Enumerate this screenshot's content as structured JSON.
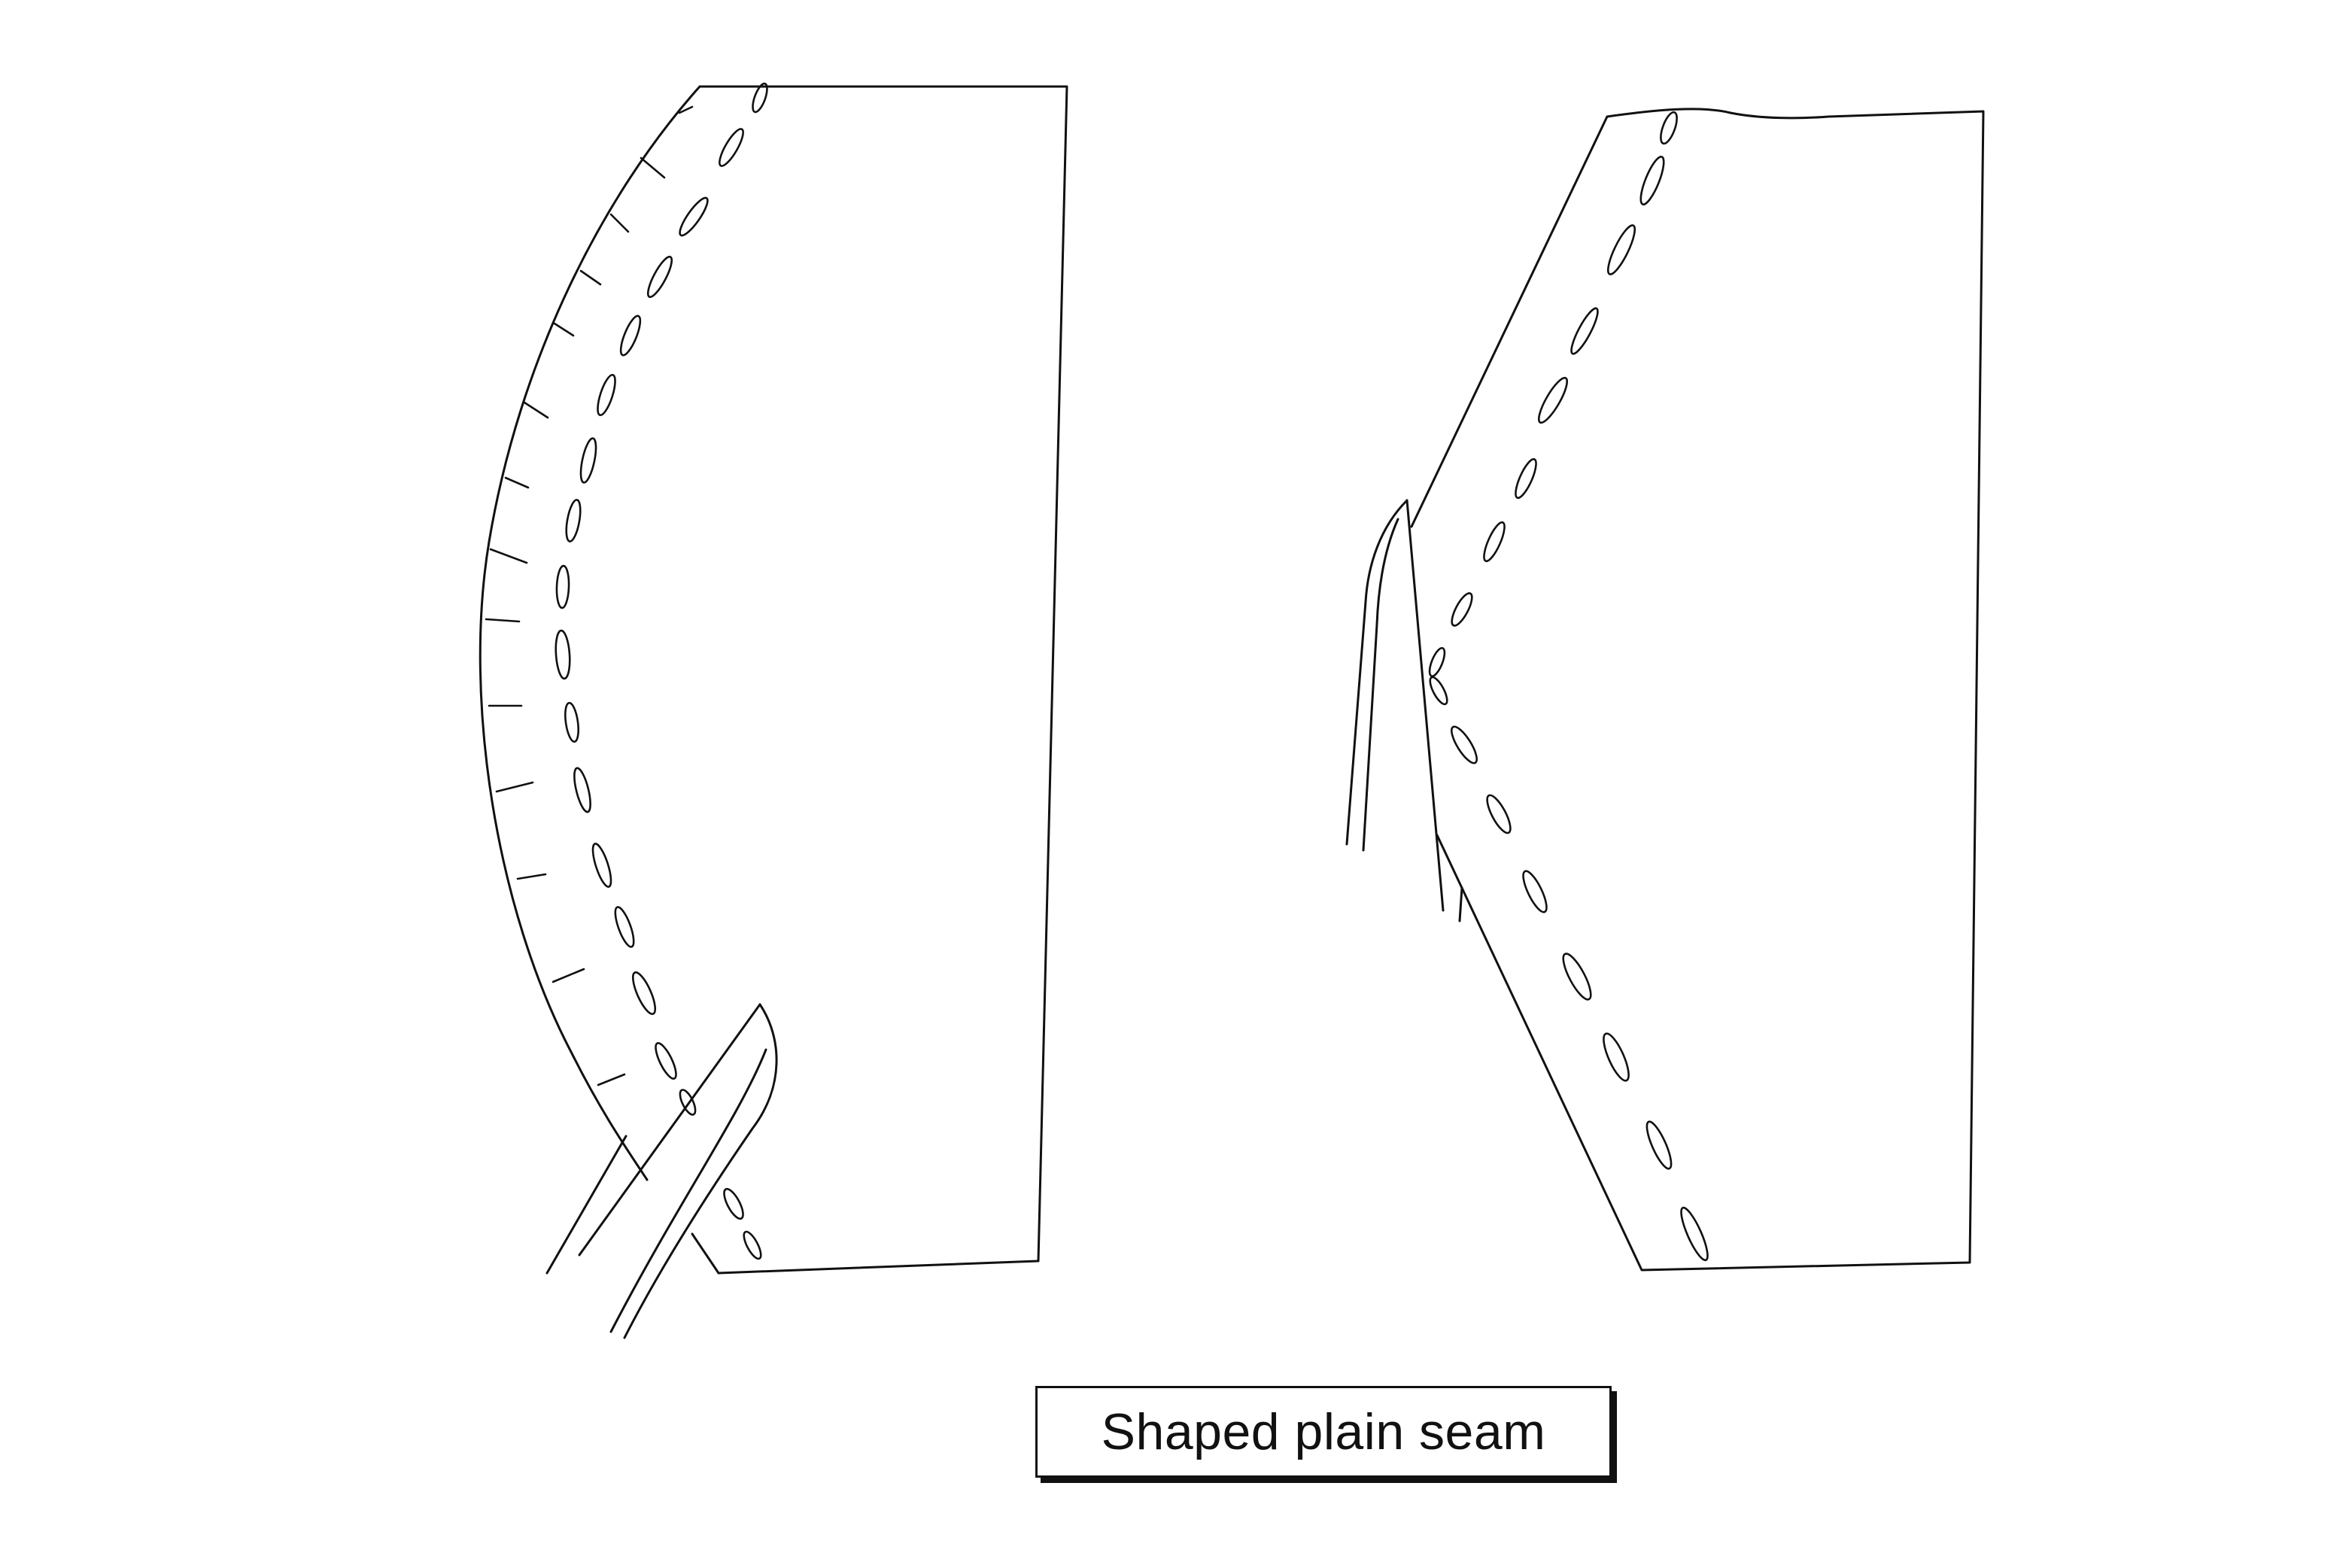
{
  "caption": {
    "label": "Shaped plain seam"
  },
  "colors": {
    "line": "#111111",
    "background": "#ffffff"
  }
}
